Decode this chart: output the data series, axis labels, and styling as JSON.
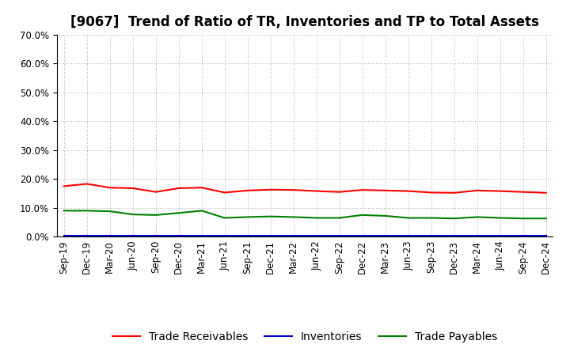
{
  "title": "[9067]  Trend of Ratio of TR, Inventories and TP to Total Assets",
  "x_labels": [
    "Sep-19",
    "Dec-19",
    "Mar-20",
    "Jun-20",
    "Sep-20",
    "Dec-20",
    "Mar-21",
    "Jun-21",
    "Sep-21",
    "Dec-21",
    "Mar-22",
    "Jun-22",
    "Sep-22",
    "Dec-22",
    "Mar-23",
    "Jun-23",
    "Sep-23",
    "Dec-23",
    "Mar-24",
    "Jun-24",
    "Sep-24",
    "Dec-24"
  ],
  "trade_receivables": [
    0.175,
    0.183,
    0.17,
    0.168,
    0.155,
    0.168,
    0.17,
    0.153,
    0.16,
    0.163,
    0.162,
    0.158,
    0.155,
    0.162,
    0.16,
    0.158,
    0.153,
    0.152,
    0.16,
    0.158,
    0.155,
    0.152
  ],
  "inventories": [
    0.003,
    0.003,
    0.003,
    0.003,
    0.003,
    0.003,
    0.003,
    0.003,
    0.003,
    0.003,
    0.003,
    0.003,
    0.003,
    0.003,
    0.003,
    0.003,
    0.003,
    0.003,
    0.003,
    0.003,
    0.003,
    0.003
  ],
  "trade_payables": [
    0.09,
    0.09,
    0.088,
    0.077,
    0.075,
    0.082,
    0.09,
    0.065,
    0.068,
    0.07,
    0.068,
    0.065,
    0.065,
    0.075,
    0.072,
    0.065,
    0.065,
    0.063,
    0.068,
    0.065,
    0.063,
    0.063
  ],
  "tr_color": "#ff0000",
  "inv_color": "#0000cd",
  "tp_color": "#008000",
  "ylim": [
    0.0,
    0.7
  ],
  "yticks": [
    0.0,
    0.1,
    0.2,
    0.3,
    0.4,
    0.5,
    0.6,
    0.7
  ],
  "legend_labels": [
    "Trade Receivables",
    "Inventories",
    "Trade Payables"
  ],
  "bg_color": "#ffffff",
  "plot_bg_color": "#ffffff",
  "grid_color": "#999999",
  "title_fontsize": 12,
  "axis_fontsize": 8.5,
  "legend_fontsize": 10
}
